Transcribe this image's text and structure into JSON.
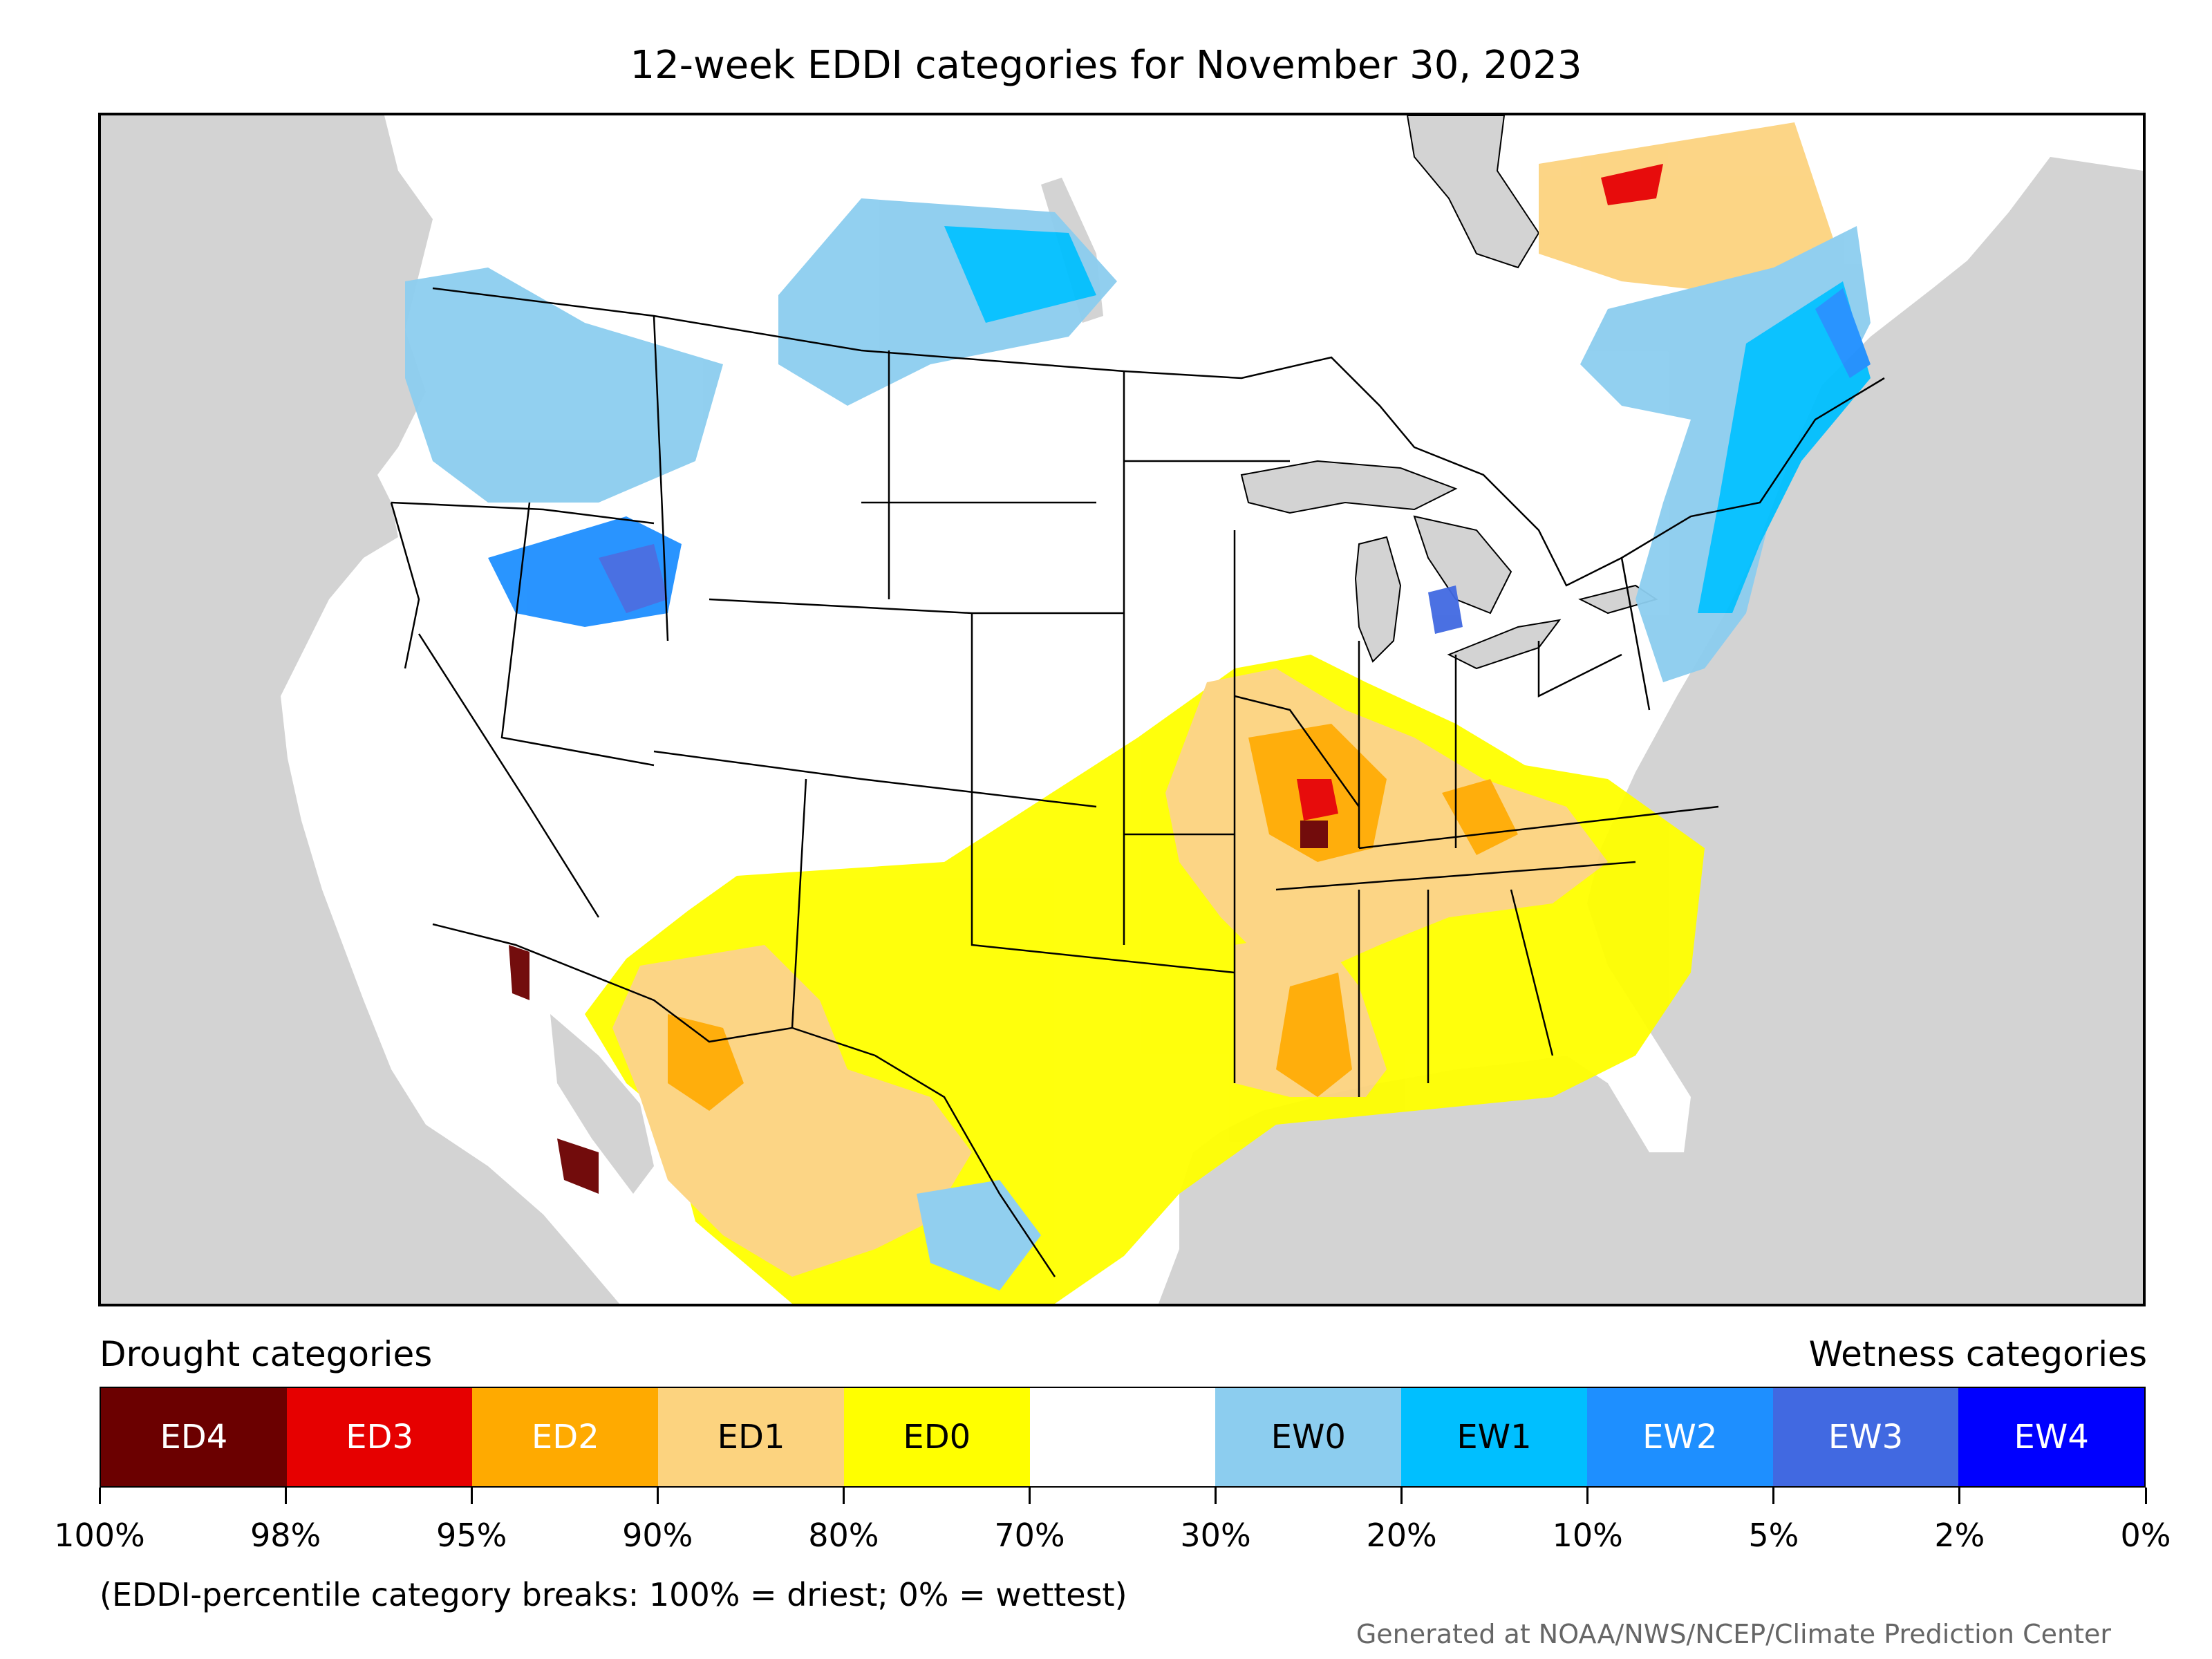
{
  "title": "12-week EDDI categories for November 30, 2023",
  "legend": {
    "drought_heading": "Drought categories",
    "wetness_heading": "Wetness categories",
    "categories": [
      {
        "label": "ED4",
        "color": "#6b0000",
        "text_color": "#ffffff"
      },
      {
        "label": "ED3",
        "color": "#e60000",
        "text_color": "#ffffff"
      },
      {
        "label": "ED2",
        "color": "#ffaa00",
        "text_color": "#ffffff"
      },
      {
        "label": "ED1",
        "color": "#fcd37f",
        "text_color": "#000000"
      },
      {
        "label": "ED0",
        "color": "#ffff00",
        "text_color": "#000000"
      },
      {
        "label": "",
        "color": "#ffffff",
        "text_color": "#000000"
      },
      {
        "label": "EW0",
        "color": "#8ccdef",
        "text_color": "#000000"
      },
      {
        "label": "EW1",
        "color": "#00bfff",
        "text_color": "#000000"
      },
      {
        "label": "EW2",
        "color": "#1e8fff",
        "text_color": "#ffffff"
      },
      {
        "label": "EW3",
        "color": "#4169e1",
        "text_color": "#ffffff"
      },
      {
        "label": "EW4",
        "color": "#0000ff",
        "text_color": "#ffffff"
      }
    ],
    "breaks": [
      "100%",
      "98%",
      "95%",
      "90%",
      "80%",
      "70%",
      "30%",
      "20%",
      "10%",
      "5%",
      "2%",
      "0%"
    ],
    "note": "(EDDI-percentile category breaks: 100% = driest; 0% = wettest)"
  },
  "credit": "Generated at NOAA/NWS/NCEP/Climate Prediction Center",
  "map_colors": {
    "ocean": "#d3d3d3",
    "land": "#ffffff",
    "border": "#000000"
  }
}
